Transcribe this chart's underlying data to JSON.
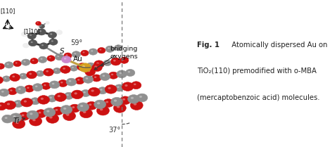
{
  "figure_width": 4.69,
  "figure_height": 2.09,
  "dpi": 100,
  "bg_color": "#ffffff",
  "caption_lines": [
    [
      "Fig. 1",
      "  Atomically dispersed Au on"
    ],
    [
      "",
      "TiO₂(110) premodified with ο-MBA"
    ],
    [
      "",
      "(mercaptobenzoic acid) molecules."
    ]
  ],
  "caption_fontsize": 7.2,
  "caption_color": "#222222",
  "color_oxygen": "#cc1111",
  "color_ti": "#909090",
  "color_au": "#d4a020",
  "color_s": "#cc88cc",
  "color_c": "#555555",
  "color_h": "#eeeeee",
  "color_bond": "#aaaaaa"
}
